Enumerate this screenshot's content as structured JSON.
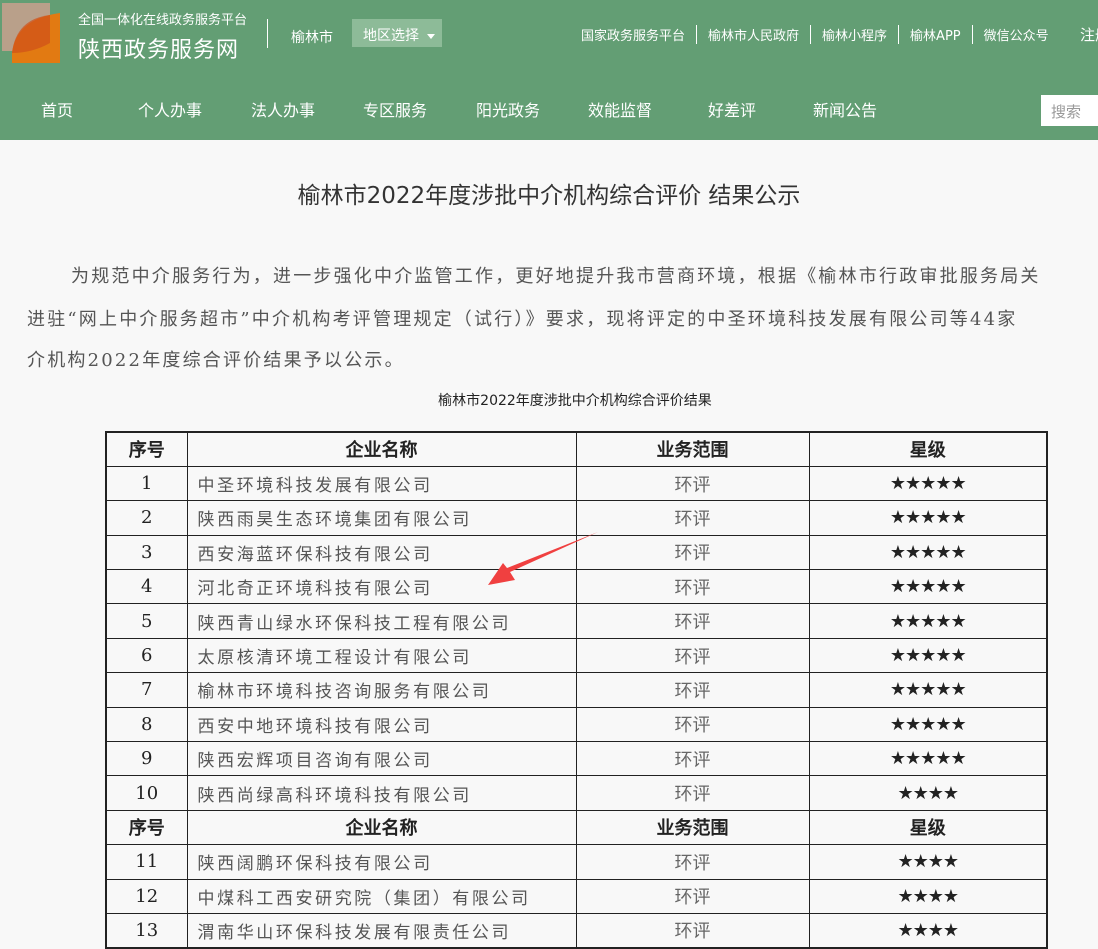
{
  "header": {
    "platform": "全国一体化在线政务服务平台",
    "site_name": "陕西政务服务网",
    "city": "榆林市",
    "region_select": "地区选择",
    "top_links": [
      "国家政务服务平台",
      "榆林市人民政府",
      "榆林小程序",
      "榆林APP",
      "微信公众号"
    ],
    "register": "注册",
    "nav": [
      "首页",
      "个人办事",
      "法人办事",
      "专区服务",
      "阳光政务",
      "效能监督",
      "好差评",
      "新闻公告"
    ],
    "search_placeholder": "搜索",
    "brand_color": "#639e74"
  },
  "article": {
    "title": "榆林市2022年度涉批中介机构综合评价 结果公示",
    "paragraph_lines": [
      "为规范中介服务行为，进一步强化中介监管工作，更好地提升我市营商环境，根据《榆林市行政审批服务局关",
      "进驻“网上中介服务超市”中介机构考评管理规定（试行）》要求，现将评定的中圣环境科技发展有限公司等44家",
      "介机构2022年度综合评价结果予以公示。"
    ],
    "table_caption": "榆林市2022年度涉批中介机构综合评价结果",
    "table_headers": [
      "序号",
      "企业名称",
      "业务范围",
      "星级"
    ],
    "rows": [
      [
        "1",
        "中圣环境科技发展有限公司",
        "环评",
        "★★★★★"
      ],
      [
        "2",
        "陕西雨昊生态环境集团有限公司",
        "环评",
        "★★★★★"
      ],
      [
        "3",
        "西安海蓝环保科技有限公司",
        "环评",
        "★★★★★"
      ],
      [
        "4",
        "河北奇正环境科技有限公司",
        "环评",
        "★★★★★"
      ],
      [
        "5",
        "陕西青山绿水环保科技工程有限公司",
        "环评",
        "★★★★★"
      ],
      [
        "6",
        "太原核清环境工程设计有限公司",
        "环评",
        "★★★★★"
      ],
      [
        "7",
        "榆林市环境科技咨询服务有限公司",
        "环评",
        "★★★★★"
      ],
      [
        "8",
        "西安中地环境科技有限公司",
        "环评",
        "★★★★★"
      ],
      [
        "9",
        "陕西宏辉项目咨询有限公司",
        "环评",
        "★★★★★"
      ],
      [
        "10",
        "陕西尚绿高科环境科技有限公司",
        "环评",
        "★★★★"
      ]
    ],
    "rows2": [
      [
        "11",
        "陕西阔鹏环保科技有限公司",
        "环评",
        "★★★★"
      ],
      [
        "12",
        "中煤科工西安研究院（集团）有限公司",
        "环评",
        "★★★★"
      ],
      [
        "13",
        "渭南华山环保科技发展有限责任公司",
        "环评",
        "★★★★"
      ]
    ],
    "annotation_color": "#f04040"
  }
}
